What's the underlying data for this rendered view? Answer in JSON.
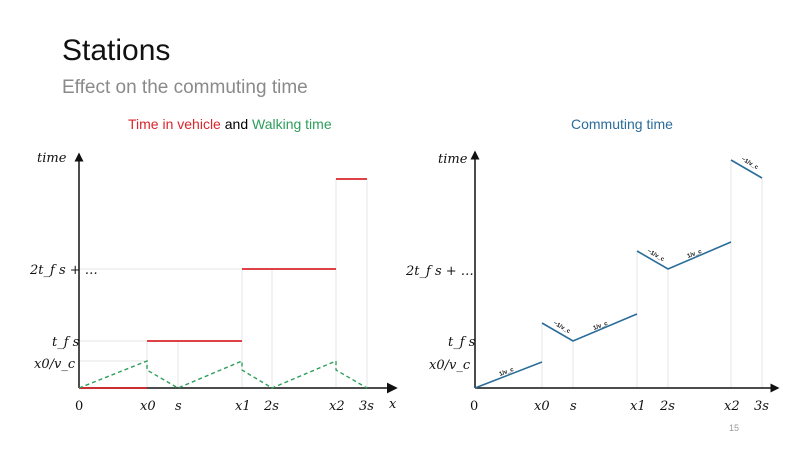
{
  "header": {
    "title": "Stations",
    "subtitle": "Effect on the commuting time"
  },
  "left": {
    "title_a": "Time in vehicle",
    "title_mid": " and ",
    "title_b": "Walking time",
    "y_axis": "time",
    "x_axis": "x",
    "y_ticks": [
      "2t_f s + …",
      "t_f s",
      "x0/v_c"
    ],
    "x_ticks": [
      "0",
      "x0",
      "s",
      "x1",
      "2s",
      "x2",
      "3s"
    ]
  },
  "right": {
    "title": "Commuting time",
    "y_axis": "time",
    "y_ticks": [
      "2t_f s + …",
      "t_f s",
      "x0/v_c"
    ],
    "x_ticks": [
      "0",
      "x0",
      "s",
      "x1",
      "2s",
      "x2",
      "3s"
    ],
    "slope_pos": "1/v_c",
    "slope_neg": "−1/v_c"
  },
  "colors": {
    "vehicle": "#d9262b",
    "walking": "#2e9e5b",
    "commute": "#2a6c9a"
  },
  "page_number": "15"
}
